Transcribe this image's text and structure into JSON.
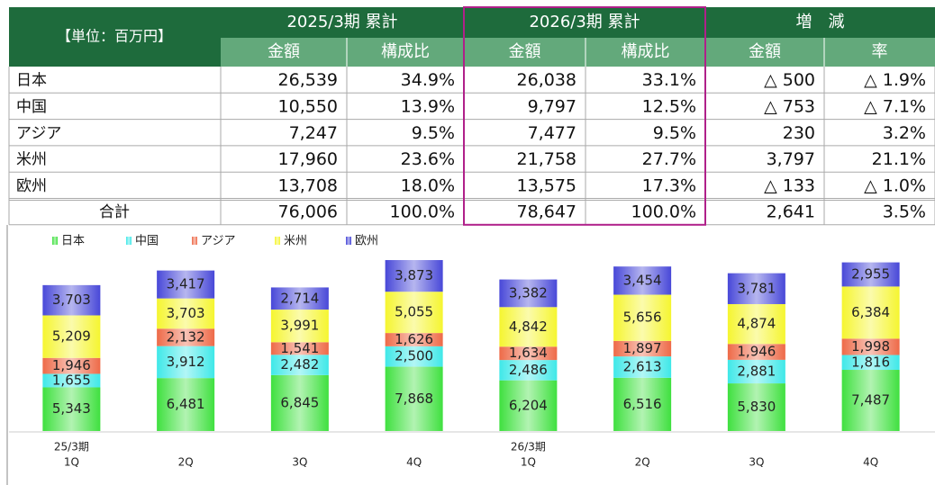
{
  "table": {
    "unit_label": "【単位：百万円】",
    "groups": [
      "2025/3期 累計",
      "2026/3期 累計",
      "増　減"
    ],
    "subheaders": [
      "金額",
      "構成比",
      "金額",
      "構成比",
      "金額",
      "率"
    ],
    "rows": [
      [
        "日本",
        "26,539",
        "34.9%",
        "26,038",
        "33.1%",
        "△ 500",
        "△ 1.9%"
      ],
      [
        "中国",
        "10,550",
        "13.9%",
        "9,797",
        "12.5%",
        "△ 753",
        "△ 7.1%"
      ],
      [
        "アジア",
        "7,247",
        "9.5%",
        "7,477",
        "9.5%",
        "230",
        "3.2%"
      ],
      [
        "米州",
        "17,960",
        "23.6%",
        "21,758",
        "27.7%",
        "3,797",
        "21.1%"
      ],
      [
        "欧州",
        "13,708",
        "18.0%",
        "13,575",
        "17.3%",
        "△ 133",
        "△ 1.0%"
      ],
      [
        "合計",
        "76,006",
        "100.0%",
        "78,647",
        "100.0%",
        "2,641",
        "3.5%"
      ]
    ]
  },
  "chart_data": {
    "type": "stacked_bar",
    "categories": [
      "1Q",
      "2Q",
      "3Q",
      "4Q",
      "1Q",
      "2Q",
      "3Q",
      "4Q"
    ],
    "periods": [
      "25/3期",
      null,
      null,
      null,
      "26/3期",
      null,
      null,
      null
    ],
    "series": [
      {
        "name": "日本",
        "color": "#3fe03f",
        "values": [
          5343,
          6481,
          6845,
          7868,
          6204,
          6516,
          5830,
          7487
        ],
        "value_labels": [
          "5,343",
          "6,481",
          "6,845",
          "7,868",
          "6,204",
          "6,516",
          "5,830",
          "7,487"
        ]
      },
      {
        "name": "中国",
        "color": "#3fe8e8",
        "values": [
          1655,
          3912,
          2482,
          2500,
          2486,
          2613,
          2881,
          1816
        ],
        "value_labels": [
          "1,655",
          "3,912",
          "2,482",
          "2,500",
          "2,486",
          "2,613",
          "2,881",
          "1,816"
        ]
      },
      {
        "name": "アジア",
        "color": "#ee6a48",
        "values": [
          1946,
          2132,
          1541,
          1626,
          1634,
          1897,
          1946,
          1998
        ],
        "value_labels": [
          "1,946",
          "2,132",
          "1,541",
          "1,626",
          "1,634",
          "1,897",
          "1,946",
          "1,998"
        ]
      },
      {
        "name": "米州",
        "color": "#f5f530",
        "values": [
          5209,
          3703,
          3991,
          5055,
          4842,
          5656,
          4874,
          6384
        ],
        "value_labels": [
          "5,209",
          "3,703",
          "3,991",
          "5,055",
          "4,842",
          "5,656",
          "4,874",
          "6,384"
        ]
      },
      {
        "name": "欧州",
        "color": "#4848d8",
        "values": [
          3703,
          3417,
          2714,
          3873,
          3382,
          3454,
          3781,
          2955
        ],
        "value_labels": [
          "3,703",
          "3,417",
          "2,714",
          "3,873",
          "3,382",
          "3,454",
          "3,781",
          "2,955"
        ]
      }
    ]
  }
}
